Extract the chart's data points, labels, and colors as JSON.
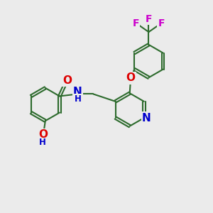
{
  "bg_color": "#ebebeb",
  "bond_color": "#2d6b2d",
  "bond_width": 1.5,
  "dbo": 0.06,
  "atom_colors": {
    "O": "#dd0000",
    "N": "#0000cc",
    "F": "#cc00cc"
  }
}
